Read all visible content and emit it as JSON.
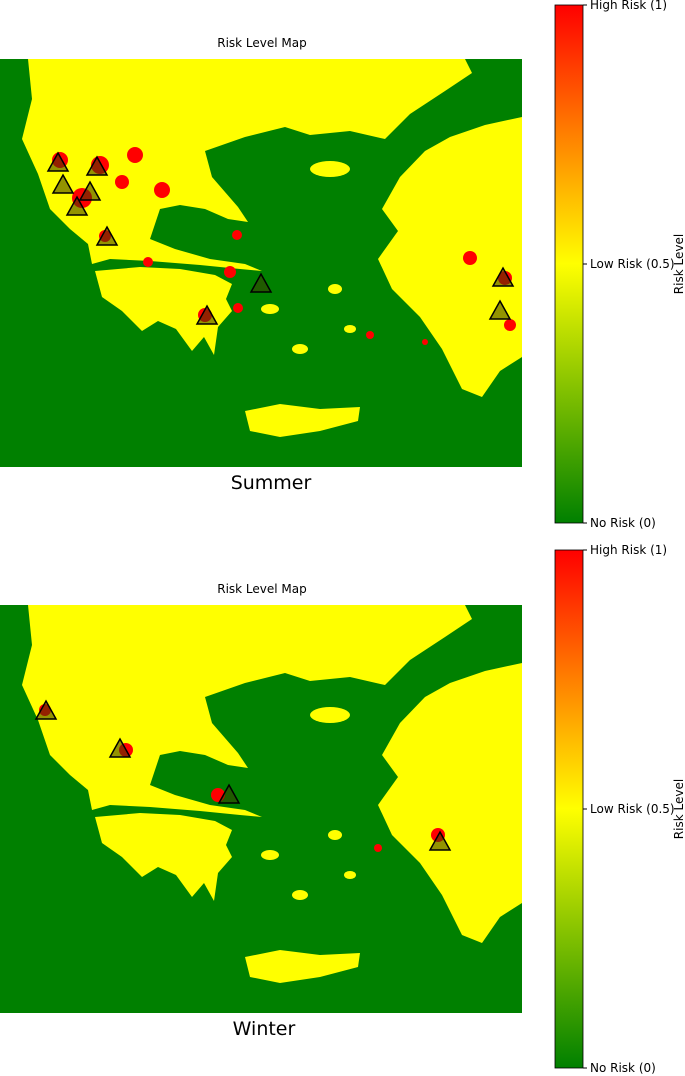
{
  "panels": [
    {
      "title": "Risk Level Map",
      "caption": "Summer",
      "colorbar": {
        "label": "Risk Level",
        "ticks": [
          {
            "value": 1,
            "label": "High Risk (1)"
          },
          {
            "value": 0.5,
            "label": "Low Risk (0.5)"
          },
          {
            "value": 0,
            "label": "No Risk (0)"
          }
        ]
      }
    },
    {
      "title": "Risk Level Map",
      "caption": "Winter",
      "colorbar": {
        "label": "Risk Level",
        "ticks": [
          {
            "value": 1,
            "label": "High Risk (1)"
          },
          {
            "value": 0.5,
            "label": "Low Risk (0.5)"
          },
          {
            "value": 0,
            "label": "No Risk (0)"
          }
        ]
      }
    }
  ]
}
